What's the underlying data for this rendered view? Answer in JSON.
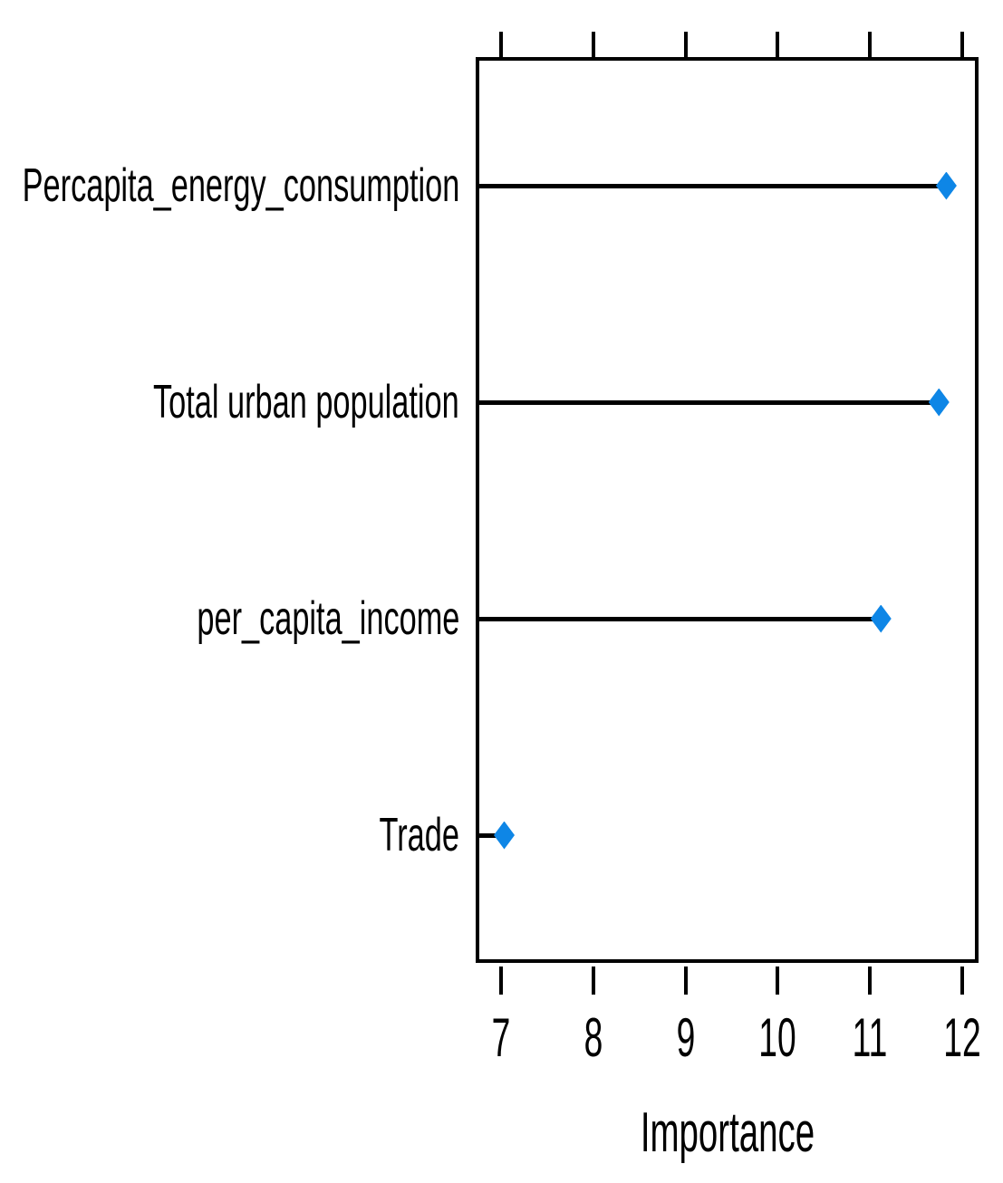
{
  "chart_data": {
    "type": "scatter",
    "subtype": "horizontal-dot-plot-variable-importance",
    "title": "",
    "xlabel": "Importance",
    "ylabel": "",
    "categories": [
      "Percapita_energy_consumption",
      "Total urban population",
      "per_capita_income",
      "Trade"
    ],
    "values": [
      11.83,
      11.75,
      11.12,
      7.03
    ],
    "x_ticks": [
      7,
      8,
      9,
      10,
      11,
      12
    ],
    "xlim": [
      6.72,
      12.18
    ],
    "grid": false,
    "legend": "none",
    "axis_sides_with_ticks": [
      "top",
      "bottom"
    ],
    "marker_shape": "diamond",
    "marker_color": "#0e86e6",
    "line_color": "#000000",
    "axis_color": "#000000",
    "background_color": "#ffffff"
  }
}
